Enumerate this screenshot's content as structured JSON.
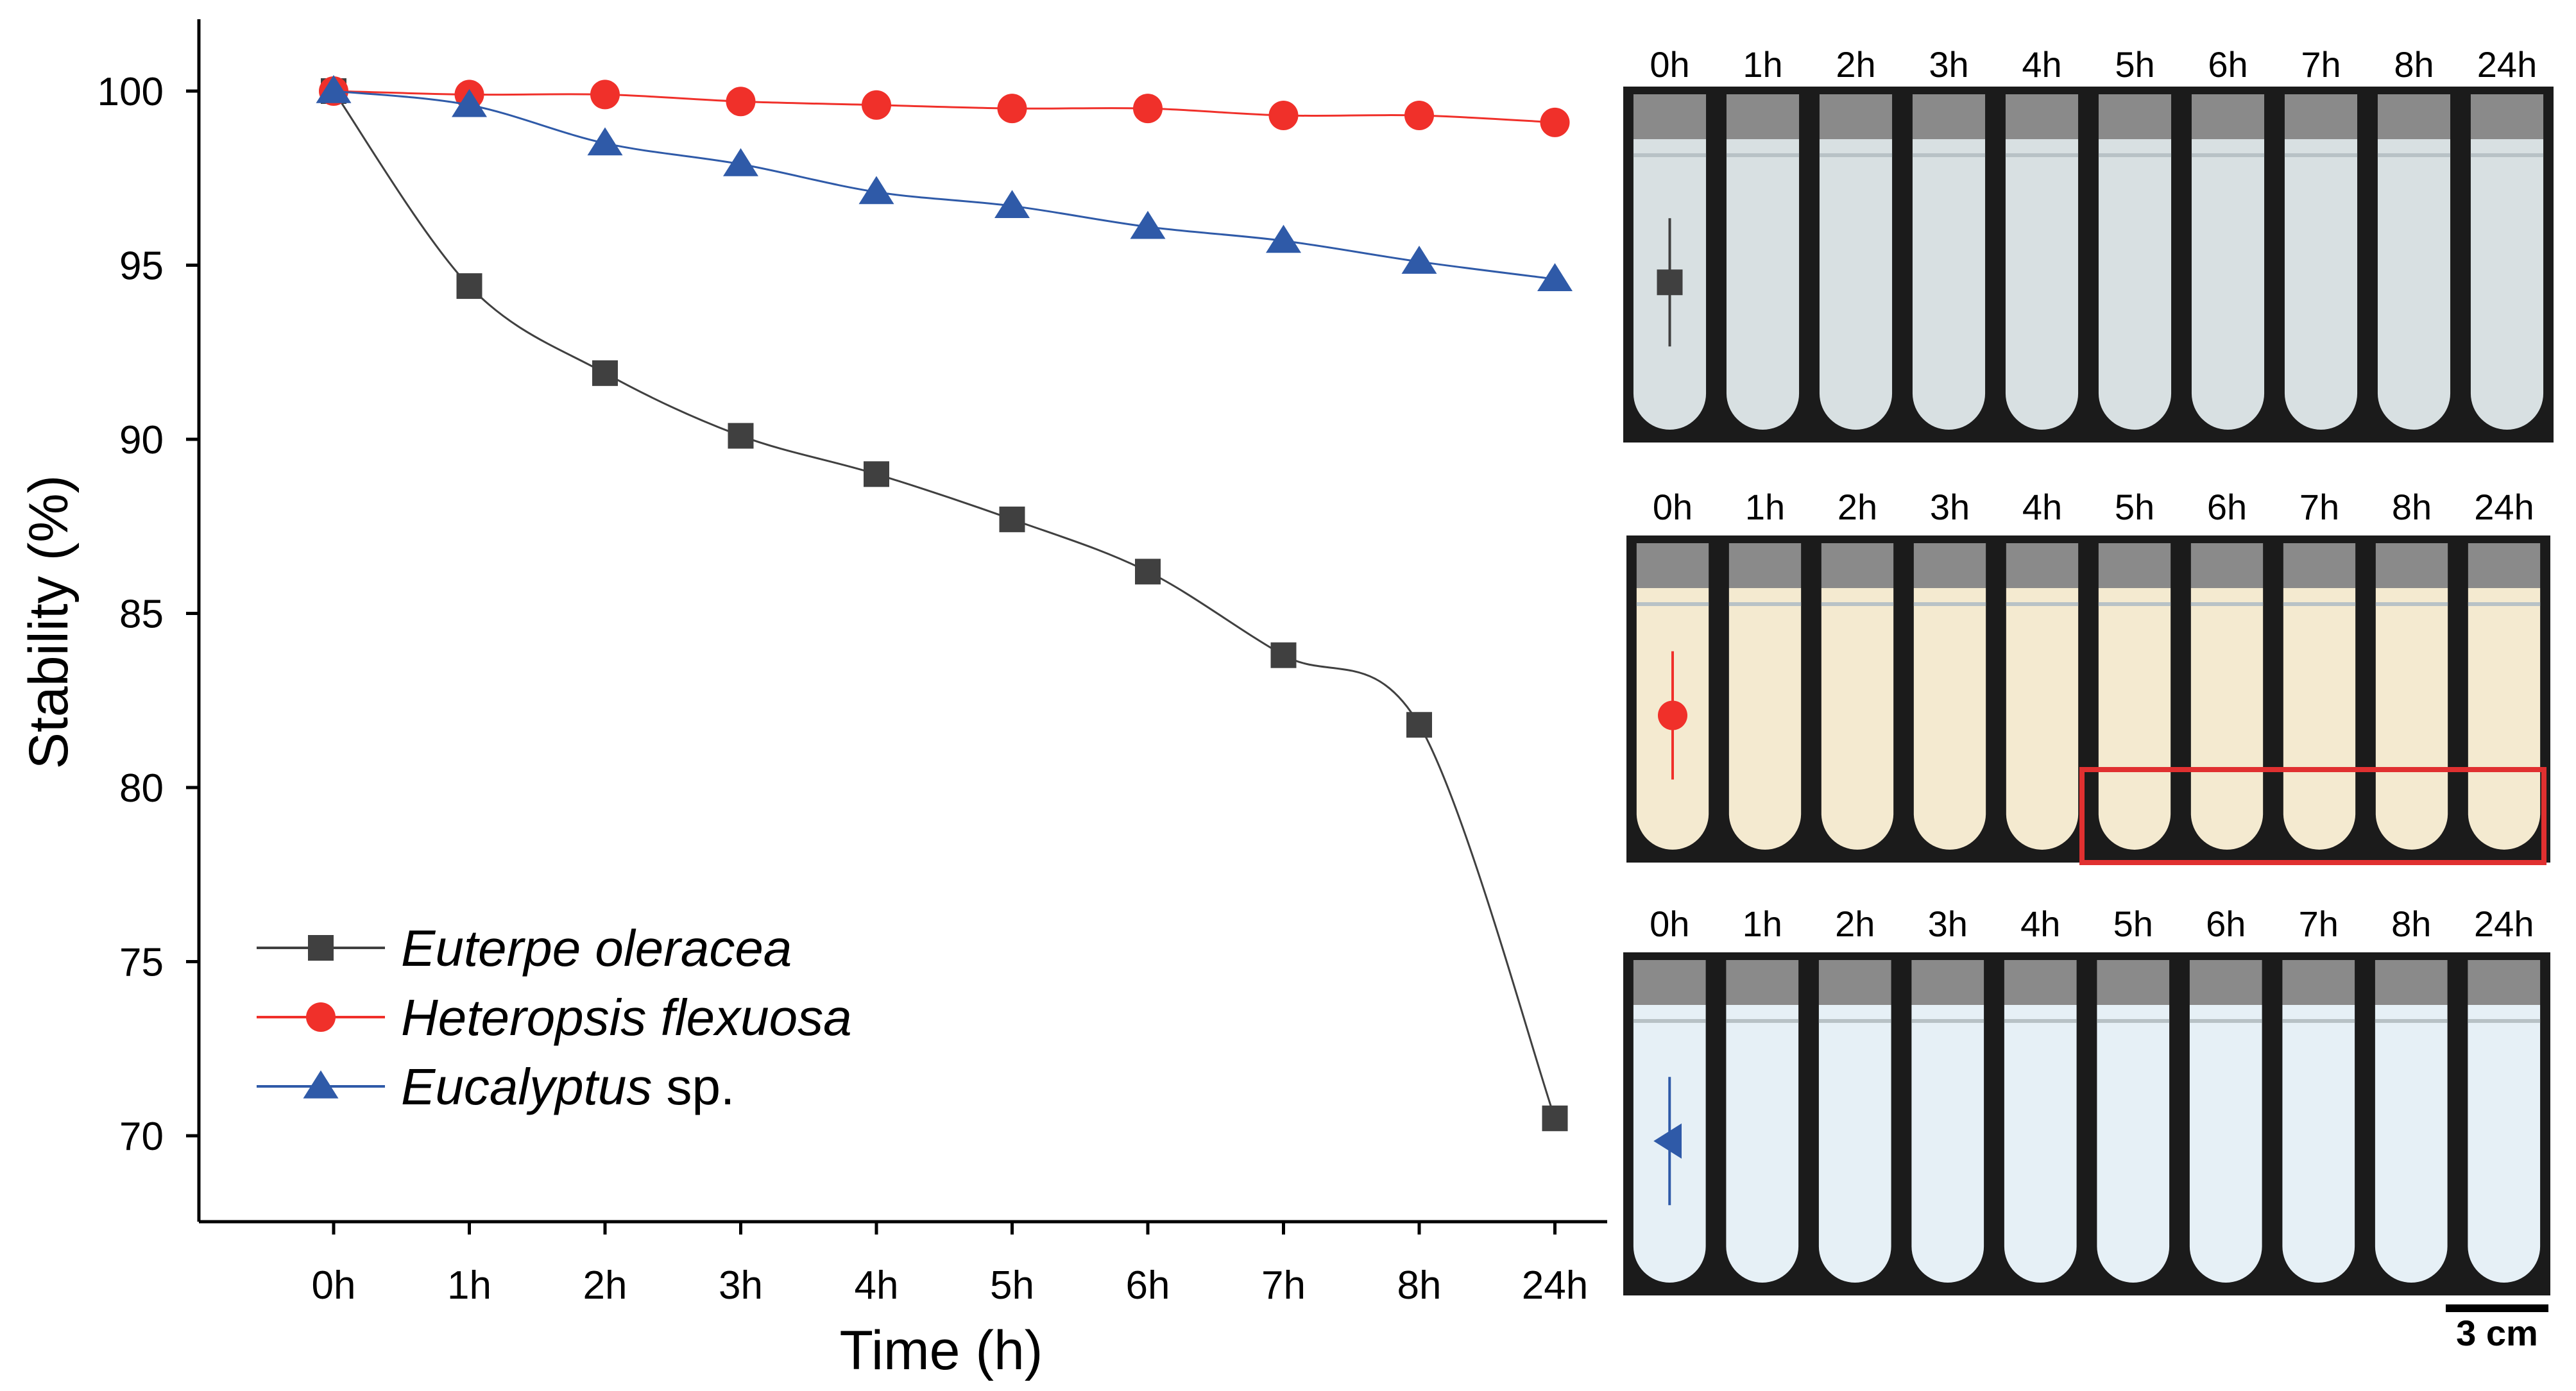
{
  "chart_data": {
    "type": "line",
    "title": "",
    "xlabel": "Time (h)",
    "ylabel": "Stability (%)",
    "categories": [
      "0h",
      "1h",
      "2h",
      "3h",
      "4h",
      "5h",
      "6h",
      "7h",
      "8h",
      "24h"
    ],
    "ylim": [
      68,
      102
    ],
    "yticks": [
      70,
      75,
      80,
      85,
      90,
      95,
      100
    ],
    "grid": false,
    "legend_position": "bottom-left",
    "series": [
      {
        "name": "Euterpe oleracea",
        "italic_part": "Euterpe oleracea",
        "plain_part": "",
        "marker": "square",
        "color": "#404040",
        "values": [
          100,
          94.4,
          91.9,
          90.1,
          89.0,
          87.7,
          86.2,
          83.8,
          81.8,
          70.5
        ]
      },
      {
        "name": "Heteropsis flexuosa",
        "italic_part": "Heteropsis flexuosa",
        "plain_part": "",
        "marker": "circle",
        "color": "#f0302a",
        "values": [
          100,
          99.9,
          99.9,
          99.7,
          99.6,
          99.5,
          99.5,
          99.3,
          99.3,
          99.1
        ]
      },
      {
        "name": "Eucalyptus sp.",
        "italic_part": "Eucalyptus",
        "plain_part": " sp.",
        "marker": "triangle",
        "color": "#2f5aa8",
        "values": [
          100,
          99.6,
          98.5,
          97.9,
          97.1,
          96.7,
          96.1,
          95.7,
          95.1,
          94.6
        ]
      }
    ]
  },
  "photo_panels": [
    {
      "labels": [
        "0h",
        "1h",
        "2h",
        "3h",
        "4h",
        "5h",
        "6h",
        "7h",
        "8h",
        "24h"
      ],
      "marker": "square",
      "marker_color": "#404040",
      "liquid_color": "#d8e0e2",
      "highlight": false
    },
    {
      "labels": [
        "0h",
        "1h",
        "2h",
        "3h",
        "4h",
        "5h",
        "6h",
        "7h",
        "8h",
        "24h"
      ],
      "marker": "circle",
      "marker_color": "#f0302a",
      "liquid_color": "#f4ead0",
      "highlight": true,
      "highlight_color": "#e03030"
    },
    {
      "labels": [
        "0h",
        "1h",
        "2h",
        "3h",
        "4h",
        "5h",
        "6h",
        "7h",
        "8h",
        "24h"
      ],
      "marker": "triangle-left",
      "marker_color": "#2f5aa8",
      "liquid_color": "#e6f0f6",
      "highlight": false
    }
  ],
  "scale_bar": {
    "label": "3 cm"
  }
}
